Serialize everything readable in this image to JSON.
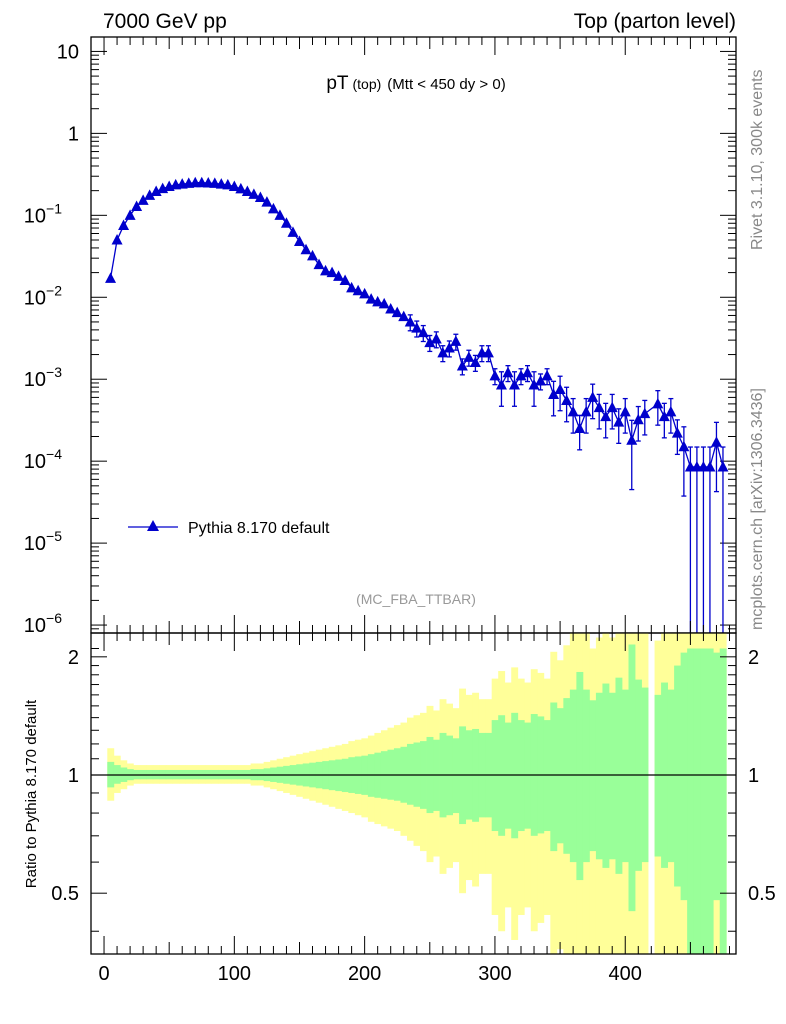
{
  "header": {
    "left": "7000 GeV pp",
    "right": "Top (parton level)"
  },
  "side": {
    "rivet": "Rivet 3.1.10,  300k events",
    "mcplots": "mcplots.cern.ch [arXiv:1306.3436]"
  },
  "chart_data": [
    {
      "type": "line",
      "title_main": "pT",
      "title_sub": "(top)",
      "title_cut": "(Mtt < 450 dy > 0)",
      "watermark": "(MC_FBA_TTBAR)",
      "yscale": "log",
      "ylim": [
        8e-07,
        15
      ],
      "xlim": [
        -10,
        485
      ],
      "y_ticks": [
        {
          "v": 10,
          "m": "10",
          "e": ""
        },
        {
          "v": 1,
          "m": "1",
          "e": ""
        },
        {
          "v": 0.1,
          "m": "10",
          "e": "−1"
        },
        {
          "v": 0.01,
          "m": "10",
          "e": "−2"
        },
        {
          "v": 0.001,
          "m": "10",
          "e": "−3"
        },
        {
          "v": 0.0001,
          "m": "10",
          "e": "−4"
        },
        {
          "v": 1e-05,
          "m": "10",
          "e": "−5"
        },
        {
          "v": 1e-06,
          "m": "10",
          "e": "−6"
        }
      ],
      "legend": {
        "label": "Pythia 8.170 default",
        "placement": "lower-left"
      },
      "color": "#0000cc",
      "series": [
        {
          "name": "Pythia 8.170 default",
          "x": [
            5,
            10,
            15,
            20,
            25,
            30,
            35,
            40,
            45,
            50,
            55,
            60,
            65,
            70,
            75,
            80,
            85,
            90,
            95,
            100,
            105,
            110,
            115,
            120,
            125,
            130,
            135,
            140,
            145,
            150,
            155,
            160,
            165,
            170,
            175,
            180,
            185,
            190,
            195,
            200,
            205,
            210,
            215,
            220,
            225,
            230,
            235,
            240,
            245,
            250,
            255,
            260,
            265,
            270,
            275,
            280,
            285,
            290,
            295,
            300,
            305,
            310,
            315,
            320,
            325,
            330,
            335,
            340,
            345,
            350,
            355,
            360,
            365,
            370,
            375,
            380,
            385,
            390,
            395,
            400,
            405,
            410,
            415,
            425,
            430,
            435,
            440,
            445,
            450,
            455,
            460,
            465,
            470,
            475
          ],
          "y": [
            0.017,
            0.05,
            0.075,
            0.1,
            0.128,
            0.152,
            0.175,
            0.195,
            0.212,
            0.225,
            0.235,
            0.24,
            0.245,
            0.25,
            0.25,
            0.248,
            0.245,
            0.24,
            0.235,
            0.225,
            0.21,
            0.195,
            0.18,
            0.165,
            0.145,
            0.12,
            0.1,
            0.08,
            0.062,
            0.048,
            0.038,
            0.032,
            0.025,
            0.021,
            0.02,
            0.018,
            0.016,
            0.013,
            0.012,
            0.011,
            0.0095,
            0.0088,
            0.0083,
            0.0072,
            0.0065,
            0.0058,
            0.005,
            0.0042,
            0.0037,
            0.0028,
            0.0031,
            0.0021,
            0.0024,
            0.0029,
            0.00145,
            0.00185,
            0.0016,
            0.0021,
            0.0021,
            0.0011,
            0.00085,
            0.0012,
            0.00085,
            0.0011,
            0.0012,
            0.00085,
            0.00095,
            0.0011,
            0.00065,
            0.00075,
            0.00055,
            0.0004,
            0.00025,
            0.0004,
            0.0006,
            0.00045,
            0.00035,
            0.00045,
            0.0003,
            0.0004,
            0.00018,
            0.00032,
            0.00038,
            0.0005,
            0.00035,
            0.0004,
            0.00022,
            0.00015,
            8.5e-05,
            8.5e-05,
            8.5e-05,
            8.5e-05,
            0.00017,
            8.5e-05
          ]
        }
      ]
    },
    {
      "type": "area",
      "ylabel": "Ratio to Pythia 8.170 default",
      "xlim": [
        -10,
        485
      ],
      "ylim": [
        0.35,
        2.3
      ],
      "y_ticks": [
        0.5,
        1,
        2
      ],
      "x_ticks": [
        0,
        100,
        200,
        300,
        400
      ],
      "colors": {
        "outer": "#ffff99",
        "inner": "#99ff99"
      },
      "bins": {
        "x": [
          5,
          10,
          15,
          20,
          25,
          30,
          35,
          40,
          45,
          50,
          55,
          60,
          65,
          70,
          75,
          80,
          85,
          90,
          95,
          100,
          105,
          110,
          115,
          120,
          125,
          130,
          135,
          140,
          145,
          150,
          155,
          160,
          165,
          170,
          175,
          180,
          185,
          190,
          195,
          200,
          205,
          210,
          215,
          220,
          225,
          230,
          235,
          240,
          245,
          250,
          255,
          260,
          265,
          270,
          275,
          280,
          285,
          290,
          295,
          300,
          305,
          310,
          315,
          320,
          325,
          330,
          335,
          340,
          345,
          350,
          355,
          360,
          365,
          370,
          375,
          380,
          385,
          390,
          395,
          400,
          405,
          410,
          415,
          425,
          430,
          435,
          440,
          445,
          450,
          455,
          460,
          465,
          470,
          475
        ],
        "inner_up": [
          1.08,
          1.06,
          1.045,
          1.035,
          1.03,
          1.03,
          1.03,
          1.03,
          1.03,
          1.03,
          1.03,
          1.03,
          1.03,
          1.03,
          1.03,
          1.03,
          1.03,
          1.03,
          1.03,
          1.03,
          1.03,
          1.03,
          1.035,
          1.035,
          1.04,
          1.045,
          1.05,
          1.055,
          1.06,
          1.065,
          1.07,
          1.075,
          1.08,
          1.085,
          1.09,
          1.095,
          1.1,
          1.11,
          1.115,
          1.12,
          1.13,
          1.14,
          1.15,
          1.16,
          1.17,
          1.18,
          1.2,
          1.21,
          1.22,
          1.25,
          1.23,
          1.28,
          1.26,
          1.24,
          1.33,
          1.3,
          1.31,
          1.28,
          1.28,
          1.38,
          1.42,
          1.36,
          1.44,
          1.38,
          1.36,
          1.43,
          1.41,
          1.38,
          1.53,
          1.48,
          1.57,
          1.65,
          1.83,
          1.65,
          1.55,
          1.62,
          1.71,
          1.62,
          1.77,
          1.65,
          2.15,
          1.75,
          1.67,
          1.6,
          1.72,
          1.65,
          1.9,
          2.05,
          2.1,
          2.1,
          2.1,
          2.1,
          2.05,
          2.1
        ],
        "inner_down": [
          0.93,
          0.95,
          0.96,
          0.97,
          0.975,
          0.975,
          0.975,
          0.975,
          0.975,
          0.975,
          0.975,
          0.975,
          0.975,
          0.975,
          0.975,
          0.975,
          0.975,
          0.975,
          0.975,
          0.975,
          0.975,
          0.975,
          0.97,
          0.97,
          0.965,
          0.96,
          0.955,
          0.95,
          0.945,
          0.94,
          0.935,
          0.93,
          0.925,
          0.92,
          0.915,
          0.91,
          0.905,
          0.9,
          0.895,
          0.89,
          0.88,
          0.875,
          0.87,
          0.865,
          0.86,
          0.85,
          0.84,
          0.83,
          0.82,
          0.8,
          0.81,
          0.78,
          0.79,
          0.8,
          0.75,
          0.77,
          0.76,
          0.78,
          0.78,
          0.72,
          0.7,
          0.73,
          0.69,
          0.72,
          0.73,
          0.7,
          0.71,
          0.72,
          0.64,
          0.67,
          0.63,
          0.6,
          0.54,
          0.6,
          0.64,
          0.61,
          0.58,
          0.61,
          0.56,
          0.6,
          0.45,
          0.57,
          0.6,
          0.62,
          0.58,
          0.6,
          0.52,
          0.48,
          0.35,
          0.35,
          0.35,
          0.35,
          0.48,
          0.35
        ],
        "outer_up": [
          1.17,
          1.12,
          1.09,
          1.07,
          1.06,
          1.06,
          1.06,
          1.06,
          1.06,
          1.06,
          1.06,
          1.06,
          1.06,
          1.06,
          1.06,
          1.06,
          1.06,
          1.06,
          1.06,
          1.06,
          1.06,
          1.06,
          1.07,
          1.07,
          1.08,
          1.09,
          1.1,
          1.11,
          1.12,
          1.13,
          1.14,
          1.15,
          1.16,
          1.17,
          1.18,
          1.19,
          1.2,
          1.22,
          1.23,
          1.24,
          1.26,
          1.28,
          1.3,
          1.32,
          1.34,
          1.36,
          1.4,
          1.42,
          1.44,
          1.5,
          1.46,
          1.56,
          1.52,
          1.48,
          1.66,
          1.6,
          1.62,
          1.56,
          1.56,
          1.76,
          1.84,
          1.72,
          1.88,
          1.76,
          1.72,
          1.86,
          1.82,
          1.76,
          2.06,
          1.96,
          2.14,
          2.3,
          2.3,
          2.3,
          2.1,
          2.24,
          2.3,
          2.24,
          2.3,
          2.3,
          2.3,
          2.3,
          2.3,
          2.2,
          2.3,
          2.3,
          2.3,
          2.3,
          2.3,
          2.3,
          2.3,
          2.3,
          2.3,
          2.3
        ],
        "outer_down": [
          0.86,
          0.9,
          0.92,
          0.94,
          0.95,
          0.95,
          0.95,
          0.95,
          0.95,
          0.95,
          0.95,
          0.95,
          0.95,
          0.95,
          0.95,
          0.95,
          0.95,
          0.95,
          0.95,
          0.95,
          0.95,
          0.95,
          0.94,
          0.94,
          0.93,
          0.92,
          0.91,
          0.9,
          0.89,
          0.88,
          0.87,
          0.86,
          0.85,
          0.84,
          0.83,
          0.82,
          0.81,
          0.8,
          0.79,
          0.78,
          0.76,
          0.75,
          0.74,
          0.73,
          0.72,
          0.7,
          0.68,
          0.66,
          0.64,
          0.6,
          0.62,
          0.56,
          0.58,
          0.6,
          0.5,
          0.54,
          0.52,
          0.56,
          0.56,
          0.44,
          0.4,
          0.46,
          0.38,
          0.44,
          0.46,
          0.4,
          0.42,
          0.44,
          0.35,
          0.36,
          0.35,
          0.35,
          0.35,
          0.35,
          0.35,
          0.35,
          0.35,
          0.35,
          0.35,
          0.35,
          0.35,
          0.35,
          0.35,
          0.35,
          0.35,
          0.35,
          0.35,
          0.35,
          0.35,
          0.35,
          0.35,
          0.35,
          0.35,
          0.35
        ]
      }
    }
  ]
}
